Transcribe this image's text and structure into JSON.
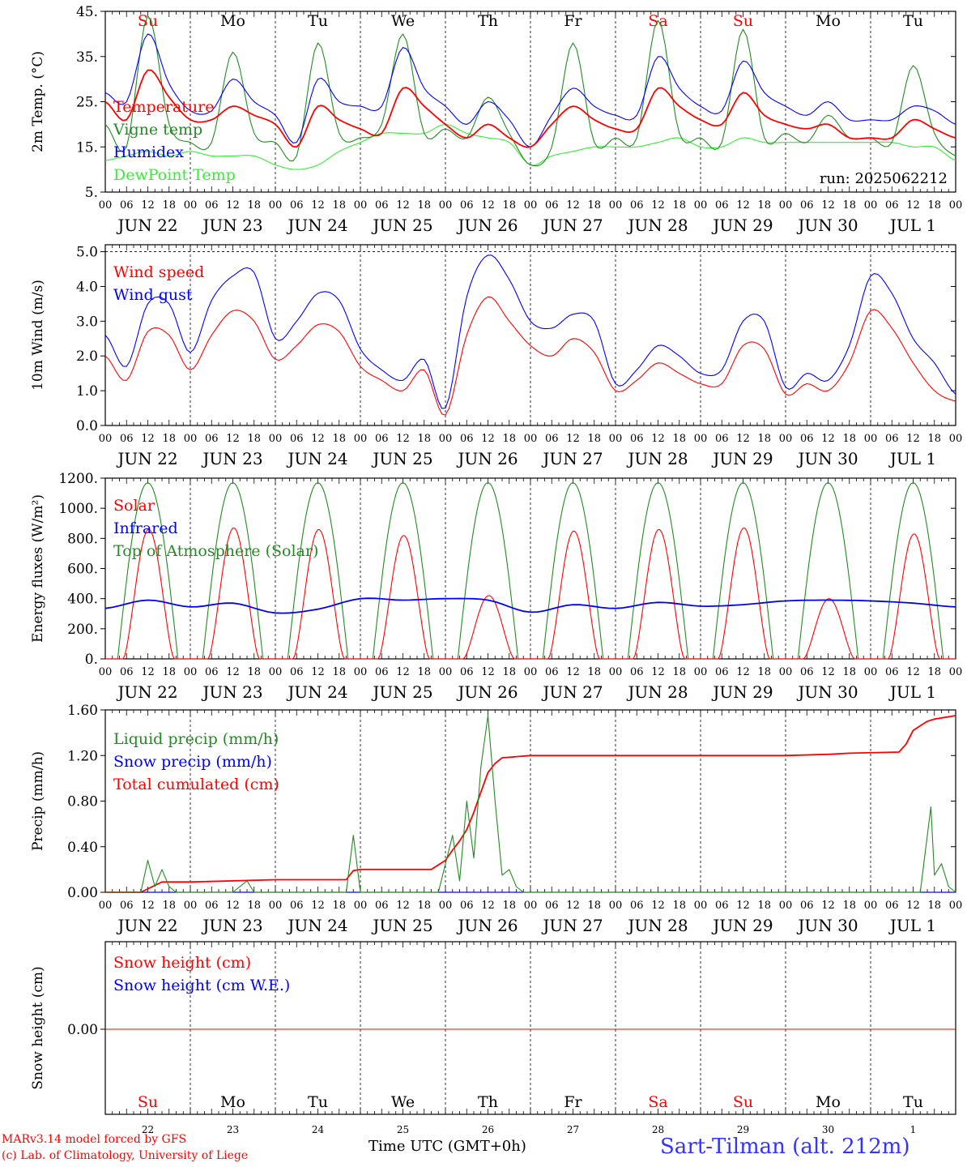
{
  "run_label": "run: 2025062212",
  "x_axis_title": "Time UTC (GMT+0h)",
  "station_label": "Sart-Tilman (alt. 212m)",
  "credit_line_1": "MARv3.14 model forced by GFS",
  "credit_line_2": "(c) Lab. of Climatology, University of Liege",
  "hour_ticks": [
    "00",
    "06",
    "12",
    "18"
  ],
  "days": [
    {
      "weekday": "Su",
      "date": "JUN 22",
      "num": "22",
      "weekend": true
    },
    {
      "weekday": "Mo",
      "date": "JUN 23",
      "num": "23",
      "weekend": false
    },
    {
      "weekday": "Tu",
      "date": "JUN 24",
      "num": "24",
      "weekend": false
    },
    {
      "weekday": "We",
      "date": "JUN 25",
      "num": "25",
      "weekend": false
    },
    {
      "weekday": "Th",
      "date": "JUN 26",
      "num": "26",
      "weekend": false
    },
    {
      "weekday": "Fr",
      "date": "JUN 27",
      "num": "27",
      "weekend": false
    },
    {
      "weekday": "Sa",
      "date": "JUN 28",
      "num": "28",
      "weekend": true
    },
    {
      "weekday": "Su",
      "date": "JUN 29",
      "num": "29",
      "weekend": true
    },
    {
      "weekday": "Mo",
      "date": "JUN 30",
      "num": "30",
      "weekend": false
    },
    {
      "weekday": "Tu",
      "date": "JUL  1",
      "num": "1",
      "weekend": false
    }
  ],
  "colors": {
    "red": "#ff0000",
    "green": "#228B22",
    "blue": "#0000ff",
    "lightgreen": "#33ee33",
    "weekend": "#ff0000"
  },
  "chart_data": [
    {
      "type": "line",
      "ylabel": "2m Temp. (°C)",
      "ylim": [
        5,
        45
      ],
      "yticks": [
        5,
        15,
        25,
        35,
        45
      ],
      "ytick_labels": [
        "5.",
        "15.",
        "25.",
        "35.",
        "45."
      ],
      "x_hours": [
        0,
        6,
        12,
        18,
        24,
        30,
        36,
        42,
        48,
        54,
        60,
        66,
        72,
        78,
        84,
        90,
        96,
        102,
        108,
        114,
        120,
        126,
        132,
        138,
        144,
        150,
        156,
        162,
        168,
        174,
        180,
        186,
        192,
        198,
        204,
        210,
        216,
        222,
        228,
        234,
        240
      ],
      "series": [
        {
          "name": "Temperature",
          "color": "red",
          "values": [
            25,
            21,
            32,
            26,
            21,
            21,
            24,
            22,
            20,
            15,
            24,
            21,
            19,
            18,
            28,
            24,
            20,
            17,
            20,
            17,
            15,
            20,
            24,
            21,
            19,
            19,
            28,
            24,
            21,
            20,
            27,
            22,
            20,
            19,
            20,
            17,
            17,
            17,
            21,
            19,
            17
          ]
        },
        {
          "name": "Vigne temp",
          "color": "green",
          "values": [
            20,
            15,
            44,
            20,
            16,
            16,
            36,
            18,
            16,
            13,
            38,
            18,
            17,
            20,
            40,
            18,
            19,
            17,
            26,
            18,
            11,
            15,
            38,
            16,
            17,
            17,
            43,
            18,
            17,
            16,
            41,
            17,
            18,
            16,
            22,
            17,
            17,
            16,
            33,
            18,
            13
          ]
        },
        {
          "name": "Humidex",
          "color": "blue",
          "values": [
            27,
            25,
            40,
            29,
            23,
            23,
            30,
            25,
            22,
            16,
            30,
            25,
            24,
            24,
            37,
            28,
            24,
            20,
            25,
            21,
            15,
            22,
            28,
            24,
            22,
            22,
            35,
            28,
            24,
            23,
            34,
            27,
            24,
            22,
            25,
            21,
            21,
            21,
            24,
            23,
            20
          ]
        },
        {
          "name": "DewPoint Temp",
          "color": "lightgreen",
          "values": [
            12,
            13,
            14,
            13,
            14,
            13,
            13,
            13,
            11,
            10,
            11,
            14,
            16,
            18,
            18,
            18,
            20,
            18,
            17,
            16,
            11,
            13,
            14,
            15,
            15,
            15,
            16,
            17,
            15,
            15,
            17,
            16,
            16,
            16,
            16,
            16,
            16,
            16,
            15,
            15,
            12
          ]
        }
      ]
    },
    {
      "type": "line",
      "ylabel": "10m Wind (m/s)",
      "ylim": [
        0,
        5.2
      ],
      "yticks": [
        0,
        1,
        2,
        3,
        4,
        5
      ],
      "ytick_labels": [
        "0.0",
        "1.0",
        "2.0",
        "3.0",
        "4.0",
        "5.0"
      ],
      "dashed_reference": 5.0,
      "x_hours": [
        0,
        6,
        12,
        18,
        24,
        30,
        36,
        42,
        48,
        54,
        60,
        66,
        72,
        78,
        84,
        90,
        96,
        102,
        108,
        114,
        120,
        126,
        132,
        138,
        144,
        150,
        156,
        162,
        168,
        174,
        180,
        186,
        192,
        198,
        204,
        210,
        216,
        222,
        228,
        234,
        240
      ],
      "series": [
        {
          "name": "Wind speed",
          "color": "red",
          "values": [
            2.0,
            1.3,
            2.7,
            2.6,
            1.6,
            2.6,
            3.3,
            3.0,
            1.9,
            2.3,
            2.9,
            2.7,
            1.7,
            1.3,
            1.0,
            1.6,
            0.3,
            2.6,
            3.7,
            3.0,
            2.3,
            2.0,
            2.5,
            2.1,
            1.0,
            1.3,
            1.8,
            1.5,
            1.2,
            1.2,
            2.3,
            2.2,
            0.9,
            1.2,
            1.0,
            1.8,
            3.3,
            2.8,
            1.8,
            1.0,
            0.7
          ]
        },
        {
          "name": "Wind gust",
          "color": "blue",
          "values": [
            2.6,
            1.7,
            3.5,
            3.5,
            2.1,
            3.6,
            4.3,
            4.4,
            2.5,
            3.0,
            3.8,
            3.6,
            2.2,
            1.6,
            1.3,
            1.9,
            0.5,
            3.7,
            4.9,
            4.2,
            3.0,
            2.8,
            3.2,
            3.0,
            1.2,
            1.6,
            2.3,
            2.0,
            1.5,
            1.6,
            3.0,
            3.0,
            1.1,
            1.5,
            1.3,
            2.3,
            4.3,
            3.8,
            2.5,
            1.8,
            0.9
          ]
        }
      ]
    },
    {
      "type": "line",
      "ylabel": "Energy fluxes (W/m²)",
      "ylim": [
        0,
        1200
      ],
      "yticks": [
        0,
        200,
        400,
        600,
        800,
        1000,
        1200
      ],
      "ytick_labels": [
        "0.",
        "200.",
        "400.",
        "600.",
        "800.",
        "1000.",
        "1200."
      ],
      "series": [
        {
          "name": "Solar",
          "color": "red",
          "daily_peaks": [
            860,
            870,
            860,
            820,
            420,
            850,
            860,
            870,
            400,
            830
          ]
        },
        {
          "name": "Infrared",
          "color": "blue",
          "x_hours": [
            0,
            12,
            24,
            36,
            48,
            60,
            72,
            84,
            96,
            108,
            120,
            132,
            144,
            156,
            168,
            180,
            192,
            204,
            216,
            228,
            240
          ],
          "values": [
            335,
            390,
            345,
            370,
            305,
            330,
            400,
            390,
            400,
            390,
            310,
            360,
            335,
            375,
            350,
            360,
            385,
            390,
            385,
            370,
            345
          ]
        },
        {
          "name": "Top of Atmosphere (Solar)",
          "color": "green",
          "daily_peaks": [
            1170,
            1170,
            1170,
            1170,
            1170,
            1170,
            1170,
            1170,
            1170,
            1170
          ]
        }
      ]
    },
    {
      "type": "line",
      "ylabel": "Precip (mm/h)",
      "ylim": [
        0,
        1.6
      ],
      "yticks": [
        0,
        0.4,
        0.8,
        1.2,
        1.6
      ],
      "ytick_labels": [
        "0.00",
        "0.40",
        "0.80",
        "1.20",
        "1.60"
      ],
      "series": [
        {
          "name": "Liquid precip (mm/h)",
          "color": "green",
          "x_hours": [
            0,
            10,
            12,
            14,
            16,
            18,
            20,
            36,
            40,
            42,
            44,
            68,
            70,
            72,
            94,
            98,
            100,
            102,
            104,
            106,
            108,
            110,
            112,
            114,
            116,
            118,
            120,
            230,
            233,
            234,
            236,
            238,
            240
          ],
          "values": [
            0,
            0,
            0.28,
            0.05,
            0.2,
            0.05,
            0,
            0,
            0.1,
            0,
            0,
            0,
            0.5,
            0,
            0,
            0.5,
            0.1,
            0.8,
            0.3,
            1.1,
            1.55,
            0.8,
            0.15,
            0.2,
            0.05,
            0,
            0,
            0,
            0.75,
            0.15,
            0.25,
            0.05,
            0
          ]
        },
        {
          "name": "Snow precip (mm/h)",
          "color": "blue",
          "x_hours": [
            0,
            240
          ],
          "values": [
            0,
            0
          ]
        },
        {
          "name": "Total cumulated (cm)",
          "color": "red",
          "x_hours": [
            0,
            10,
            16,
            24,
            48,
            68,
            70,
            72,
            92,
            96,
            98,
            100,
            102,
            104,
            106,
            108,
            110,
            112,
            120,
            144,
            168,
            192,
            204,
            210,
            224,
            226,
            228,
            232,
            234,
            240
          ],
          "values": [
            0,
            0,
            0.09,
            0.09,
            0.11,
            0.11,
            0.19,
            0.2,
            0.2,
            0.28,
            0.37,
            0.45,
            0.55,
            0.7,
            0.88,
            1.05,
            1.13,
            1.18,
            1.2,
            1.2,
            1.2,
            1.2,
            1.21,
            1.22,
            1.23,
            1.3,
            1.42,
            1.5,
            1.52,
            1.55
          ]
        }
      ]
    },
    {
      "type": "line",
      "ylabel": "Snow height (cm)",
      "yticks": [
        0
      ],
      "ytick_labels": [
        "0.00"
      ],
      "series": [
        {
          "name": "Snow height (cm)",
          "color": "red",
          "values": [
            0,
            0
          ]
        },
        {
          "name": "Snow height (cm W.E.)",
          "color": "blue",
          "values": [
            0,
            0
          ]
        }
      ]
    }
  ]
}
